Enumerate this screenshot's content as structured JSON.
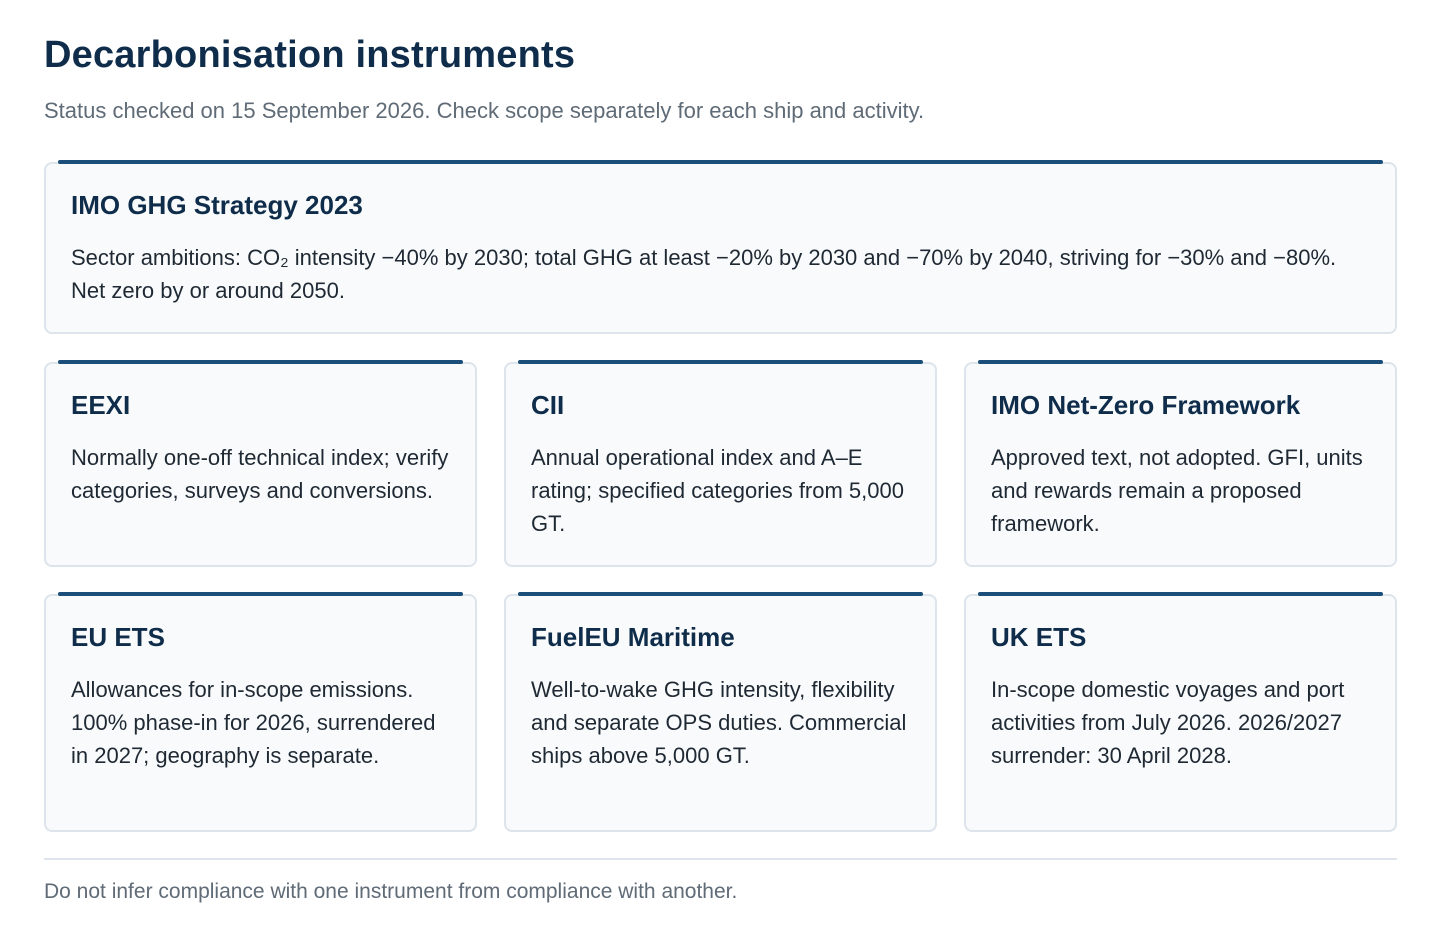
{
  "header": {
    "title": "Decarbonisation instruments",
    "subtitle": "Status checked on 15 September 2026. Check scope separately for each ship and activity."
  },
  "cards": [
    {
      "title": "IMO GHG Strategy 2023",
      "body": "Sector ambitions: CO₂ intensity −40% by 2030; total GHG at least −20% by 2030 and −70% by 2040, striving for −30% and −80%. Net zero by or around 2050."
    },
    {
      "title": "EEXI",
      "body": "Normally one-off technical index; verify categories, surveys and conversions."
    },
    {
      "title": "CII",
      "body": "Annual operational index and A–E rating; specified categories from 5,000 GT."
    },
    {
      "title": "IMO Net-Zero Framework",
      "body": "Approved text, not adopted. GFI, units and rewards remain a proposed framework."
    },
    {
      "title": "EU ETS",
      "body": "Allowances for in-scope emissions. 100% phase-in for 2026, surrendered in 2027; geography is separate."
    },
    {
      "title": "FuelEU Maritime",
      "body": "Well-to-wake GHG intensity, flexibility and separate OPS duties. Commercial ships above 5,000 GT."
    },
    {
      "title": "UK ETS",
      "body": "In-scope domestic voyages and port activities from July 2026. 2026/2027 surrender: 30 April 2028."
    }
  ],
  "footer": {
    "note": "Do not infer compliance with one instrument from compliance with another."
  },
  "colors": {
    "accent": "#1b4f7a",
    "title": "#0f2d4a",
    "card_background": "#f8fafc",
    "card_border": "#dde4ec",
    "muted_text": "#5f6b76"
  }
}
